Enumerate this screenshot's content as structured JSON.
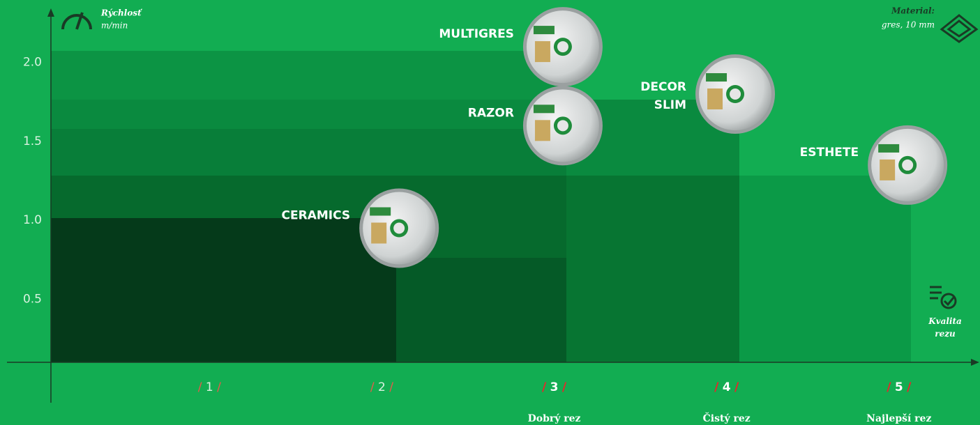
{
  "chart_data": {
    "type": "scatter",
    "y_label": "Rýchlosť",
    "y_unit": "m/min",
    "material_label": "Material:",
    "material_value": "gres, 10 mm",
    "x_label": "Kvalita rezu",
    "xlim": [
      0.08,
      5.45
    ],
    "ylim": [
      0.1,
      2.33
    ],
    "yticks": [
      {
        "value": 0.5,
        "label": "0.5"
      },
      {
        "value": 1,
        "label": "1.0"
      },
      {
        "value": 1.5,
        "label": "1.5"
      },
      {
        "value": 2,
        "label": "2.0"
      }
    ],
    "xticks": [
      1,
      2,
      3,
      4,
      5
    ],
    "xtick_separator": "/",
    "quality_labels": [
      null,
      null,
      "Dobrý rez",
      "Čistý rez",
      "Najlepší rez"
    ],
    "series": [
      {
        "name": "CERAMICS",
        "x": [
          2.1
        ],
        "values": [
          0.95
        ]
      },
      {
        "name": "MULTIGRES",
        "x": [
          3.05
        ],
        "values": [
          2.1
        ]
      },
      {
        "name": "RAZOR",
        "x": [
          3.05
        ],
        "values": [
          1.6
        ]
      },
      {
        "name": "DECOR SLIM",
        "x": [
          4.05
        ],
        "values": [
          1.8
        ]
      },
      {
        "name": "ESTHETE",
        "x": [
          5.05
        ],
        "values": [
          1.35
        ]
      }
    ]
  }
}
